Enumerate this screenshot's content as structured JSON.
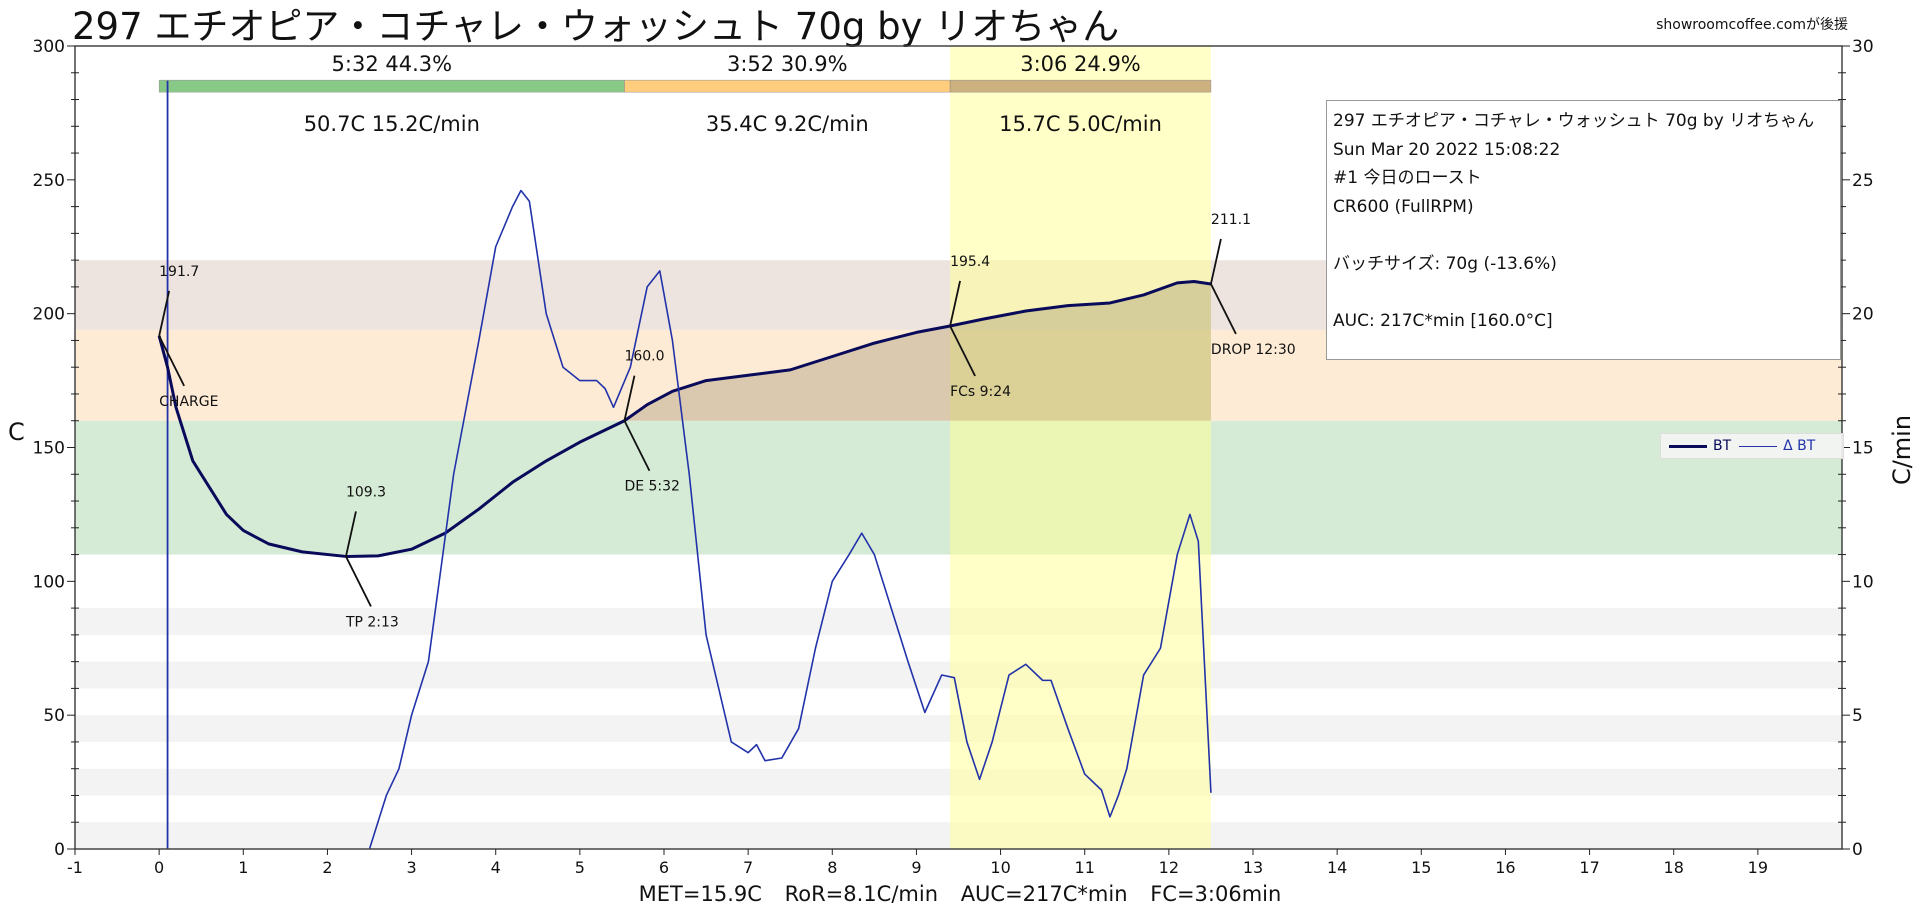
{
  "header": {
    "title": "297 エチオピア・コチャレ・ウォッシュト 70g by リオちゃん",
    "credit": "showroomcoffee.comが後援"
  },
  "info_box": {
    "lines": [
      "297 エチオピア・コチャレ・ウォッシュト 70g by リオちゃん",
      "Sun Mar 20 2022 15:08:22",
      "#1 今日のロースト",
      "CR600 (FullRPM)",
      "",
      "バッチサイズ: 70g (-13.6%)",
      "",
      "AUC: 217C*min [160.0°C]"
    ]
  },
  "legend": {
    "bt": "BT",
    "dbt": "Δ BT"
  },
  "footer": {
    "met": "MET=15.9C",
    "ror": "RoR=8.1C/min",
    "auc": "AUC=217C*min",
    "fc": "FC=3:06min"
  },
  "chart_data": {
    "type": "line",
    "xlabel": "",
    "ylabel": "C",
    "y2label": "C/min",
    "xlim": [
      -1,
      20
    ],
    "ylim": [
      0,
      300
    ],
    "y2lim": [
      0,
      30
    ],
    "xticks": [
      -1,
      0,
      1,
      2,
      3,
      4,
      5,
      6,
      7,
      8,
      9,
      10,
      11,
      12,
      13,
      14,
      15,
      16,
      17,
      18,
      19
    ],
    "yticks": [
      0,
      50,
      100,
      150,
      200,
      250,
      300
    ],
    "y2ticks": [
      0,
      5,
      10,
      15,
      20,
      25,
      30
    ],
    "colors": {
      "bt": "#0a0a5a",
      "dbt": "#2233aa",
      "green": "#7cc47c",
      "orange": "#ffc870",
      "brown": "#c8a878",
      "yellow": "#ffff99"
    },
    "bands": [
      {
        "from": 110,
        "to": 160,
        "color": "#d6ebd6"
      },
      {
        "from": 160,
        "to": 194,
        "color": "#fdebd6"
      },
      {
        "from": 194,
        "to": 220,
        "color": "#ede4e0"
      },
      {
        "from": 0,
        "to": 10,
        "color": "#f3f3f3"
      },
      {
        "from": 20,
        "to": 30,
        "color": "#f3f3f3"
      },
      {
        "from": 40,
        "to": 50,
        "color": "#f3f3f3"
      },
      {
        "from": 60,
        "to": 70,
        "color": "#f3f3f3"
      },
      {
        "from": 80,
        "to": 90,
        "color": "#f3f3f3"
      }
    ],
    "development_window": [
      9.4,
      12.5
    ],
    "phases": [
      {
        "start": 0,
        "end": 5.53,
        "color": "#7cc47c",
        "top": "5:32  44.3%",
        "bottom": "50.7C  15.2C/min"
      },
      {
        "start": 5.53,
        "end": 9.4,
        "color": "#ffc870",
        "top": "3:52  30.9%",
        "bottom": "35.4C  9.2C/min"
      },
      {
        "start": 9.4,
        "end": 12.5,
        "color": "#c8a878",
        "top": "3:06  24.9%",
        "bottom": "15.7C  5.0C/min"
      }
    ],
    "series": [
      {
        "name": "BT",
        "axis": "left",
        "x": [
          0,
          0.1,
          0.2,
          0.4,
          0.6,
          0.8,
          1,
          1.3,
          1.7,
          2.22,
          2.6,
          3,
          3.4,
          3.8,
          4.2,
          4.6,
          5,
          5.53,
          5.8,
          6.1,
          6.5,
          7,
          7.5,
          8,
          8.5,
          9,
          9.4,
          9.8,
          10.3,
          10.8,
          11.3,
          11.7,
          12.1,
          12.3,
          12.5
        ],
        "y": [
          191.7,
          180,
          165,
          145,
          135,
          125,
          119,
          114,
          111,
          109.3,
          109.5,
          112,
          118,
          127,
          137,
          145,
          152,
          160,
          166,
          171,
          175,
          177,
          179,
          184,
          189,
          193,
          195.4,
          198,
          201,
          203,
          204,
          207,
          211.5,
          212,
          211.1
        ]
      },
      {
        "name": "Δ BT",
        "axis": "right",
        "x": [
          2.5,
          2.7,
          2.85,
          3,
          3.2,
          3.5,
          3.8,
          4,
          4.2,
          4.3,
          4.4,
          4.6,
          4.8,
          5,
          5.2,
          5.3,
          5.4,
          5.6,
          5.8,
          5.95,
          6.1,
          6.3,
          6.5,
          6.8,
          7,
          7.1,
          7.2,
          7.4,
          7.6,
          7.8,
          8,
          8.2,
          8.35,
          8.5,
          8.7,
          8.9,
          9.1,
          9.3,
          9.45,
          9.6,
          9.75,
          9.9,
          10.1,
          10.3,
          10.5,
          10.6,
          10.8,
          11,
          11.2,
          11.3,
          11.4,
          11.5,
          11.7,
          11.9,
          12.1,
          12.25,
          12.35,
          12.5
        ],
        "y": [
          0,
          2,
          3,
          5,
          7,
          14,
          19,
          22.5,
          24,
          24.6,
          24.2,
          20,
          18,
          17.5,
          17.5,
          17.2,
          16.5,
          18,
          21,
          21.6,
          19,
          14,
          8,
          4,
          3.6,
          3.9,
          3.3,
          3.4,
          4.5,
          7.5,
          10,
          11,
          11.8,
          11,
          9,
          7,
          5.1,
          6.5,
          6.4,
          4,
          2.6,
          4,
          6.5,
          6.9,
          6.3,
          6.3,
          4.5,
          2.8,
          2.2,
          1.2,
          2,
          3,
          6.5,
          7.5,
          11,
          12.5,
          11.5,
          2.1
        ]
      }
    ],
    "charge_spike": {
      "x": 0.1,
      "top": 28.7
    },
    "auc_base": 160,
    "annotations": [
      {
        "x": 0,
        "y": 191.7,
        "value": "191.7",
        "event": "CHARGE"
      },
      {
        "x": 2.22,
        "y": 109.3,
        "value": "109.3",
        "event": "TP 2:13"
      },
      {
        "x": 5.53,
        "y": 160.0,
        "value": "160.0",
        "event": "DE 5:32"
      },
      {
        "x": 9.4,
        "y": 195.4,
        "value": "195.4",
        "event": "FCs 9:24"
      },
      {
        "x": 12.5,
        "y": 211.1,
        "value": "211.1",
        "event": "DROP 12:30"
      }
    ]
  }
}
